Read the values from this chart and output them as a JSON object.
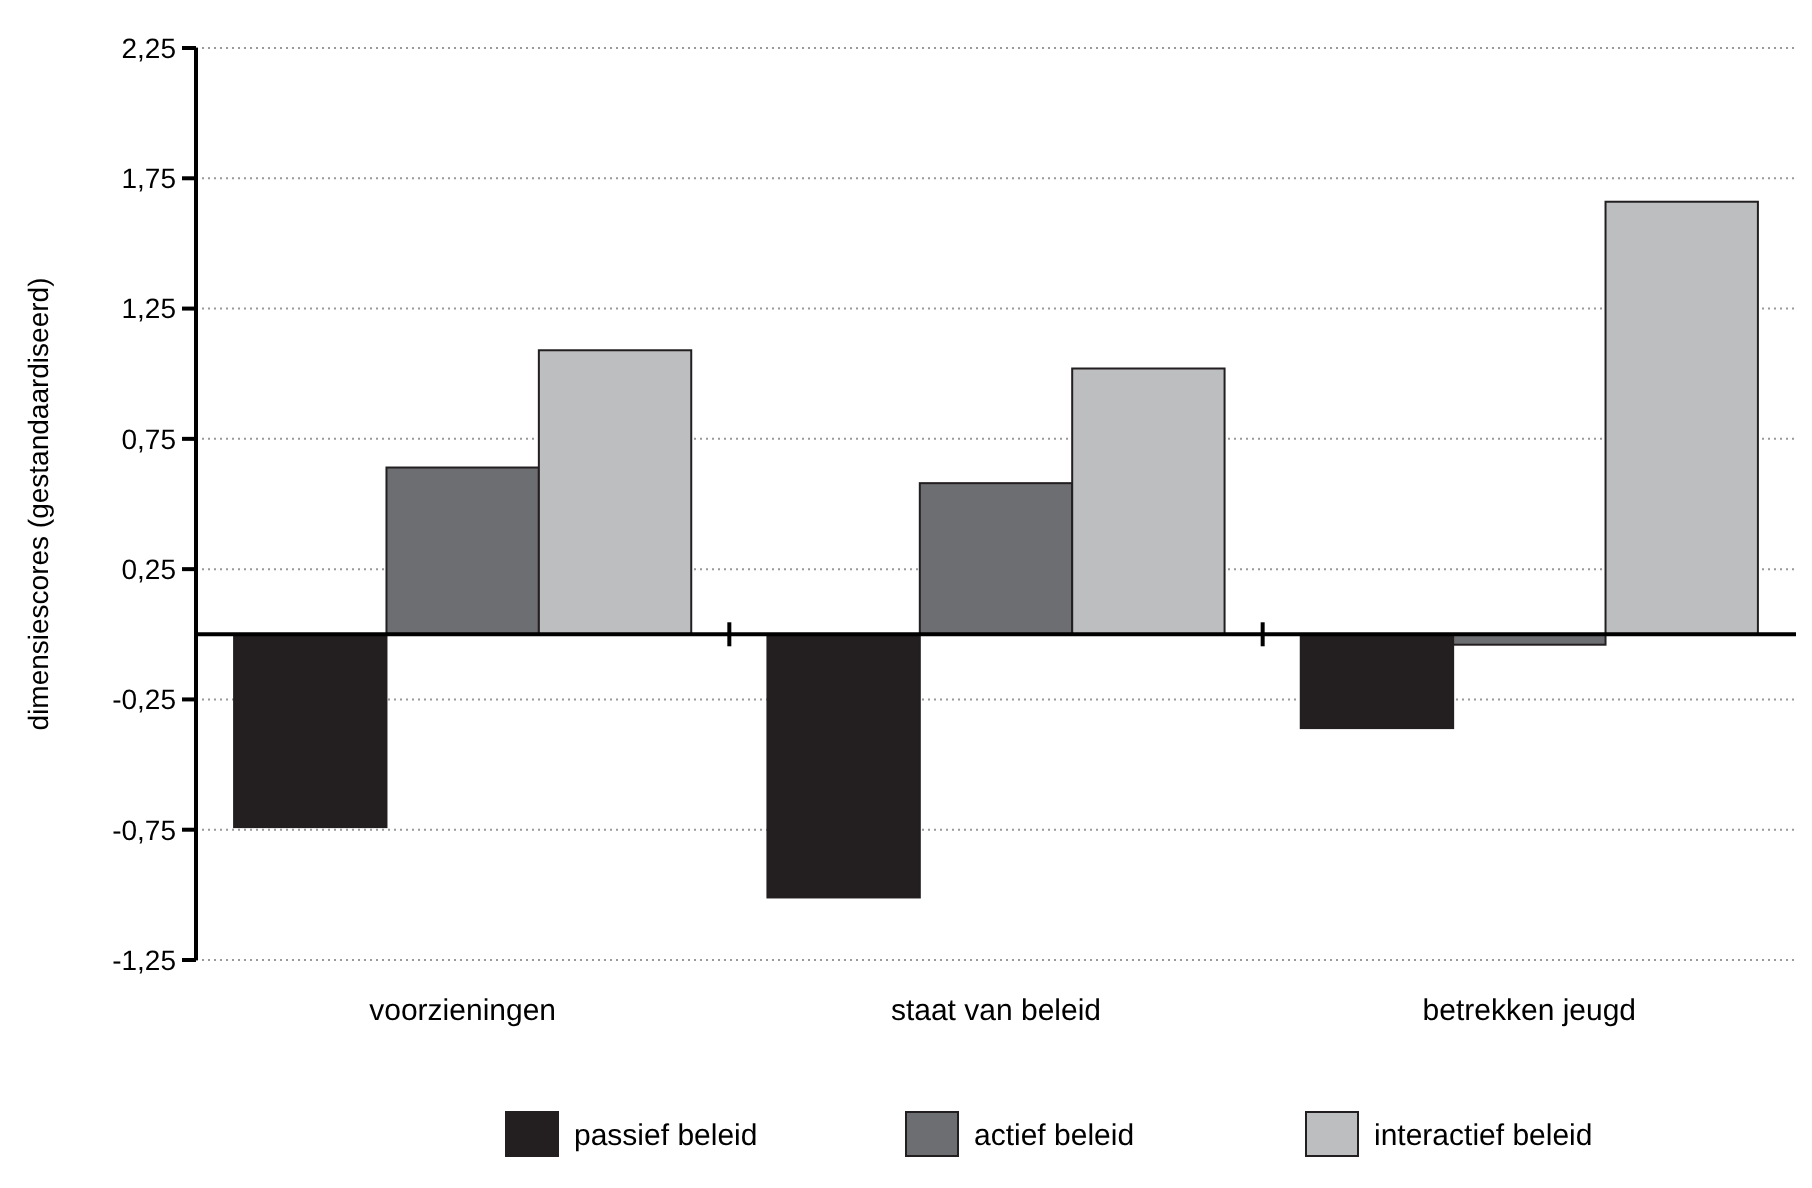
{
  "chart_data": {
    "type": "bar",
    "ylabel": "dimensiescores (gestandaardiseerd)",
    "categories": [
      "voorzieningen",
      "staat van beleid",
      "betrekken jeugd"
    ],
    "series": [
      {
        "name": "passief beleid",
        "color": "#231f20",
        "values": [
          -0.74,
          -1.01,
          -0.36
        ]
      },
      {
        "name": "actief beleid",
        "color": "#6d6e71",
        "values": [
          0.64,
          0.58,
          -0.04
        ]
      },
      {
        "name": "interactief beleid",
        "color": "#bcbec0",
        "values": [
          1.09,
          1.02,
          1.66
        ]
      }
    ],
    "ylim": [
      -1.25,
      2.25
    ],
    "yticks": [
      {
        "value": -1.25,
        "label": "-1,25"
      },
      {
        "value": -0.75,
        "label": "-0,75"
      },
      {
        "value": -0.25,
        "label": "-0,25"
      },
      {
        "value": 0.25,
        "label": "0,25"
      },
      {
        "value": 0.75,
        "label": "0,75"
      },
      {
        "value": 1.25,
        "label": "1,25"
      },
      {
        "value": 1.75,
        "label": "1,75"
      },
      {
        "value": 2.25,
        "label": "2,25"
      }
    ],
    "grid": "y",
    "legend": "bottom"
  }
}
